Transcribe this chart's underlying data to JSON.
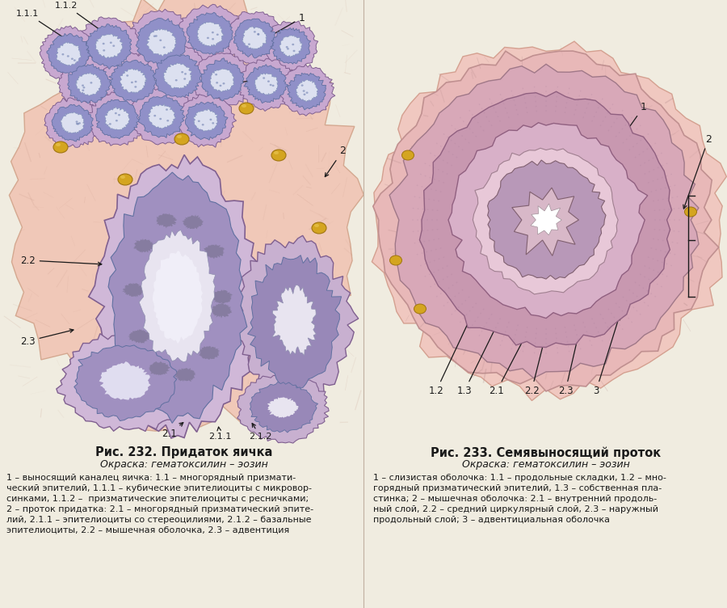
{
  "bg_color": "#f5f0e8",
  "page_bg": "#f0ece0",
  "left_title_bold": "Рис. 232. Придаток яичка",
  "left_title_italic": "Окраска: гематоксилин – эозин",
  "left_desc_line1": "1 – выносящий каналец яичка: 1.1 – многорядный призмати-",
  "left_desc_line2": "ческий эпителий, 1.1.1 – кубические эпителиоциты с микровор-",
  "left_desc_line3": "синками, 1.1.2 –  призматические эпителиоциты с ресничками;",
  "left_desc_line4": "2 – проток придатка: 2.1 – многорядный призматический эпите-",
  "left_desc_line5": "лий, 2.1.1 – эпителиоциты со стереоцилиями, 2.1.2 – базальные",
  "left_desc_line6": "эпителиоциты, 2.2 – мышечная оболочка, 2.3 – адвентиция",
  "right_title_bold": "Рис. 233. Семявыносящий проток",
  "right_title_italic": "Окраска: гематоксилин – эозин",
  "right_desc_line1": "1 – слизистая оболочка: 1.1 – продольные складки, 1.2 – мно-",
  "right_desc_line2": "горядный призматический эпителий, 1.3 – собственная пла-",
  "right_desc_line3": "стинка; 2 – мышечная оболочка: 2.1 – внутренний продоль-",
  "right_desc_line4": "ный слой, 2.2 – средний циркулярный слой, 2.3 – наружный",
  "right_desc_line5": "продольный слой; 3 – адвентициальная оболочка",
  "text_color": "#1a1a1a"
}
